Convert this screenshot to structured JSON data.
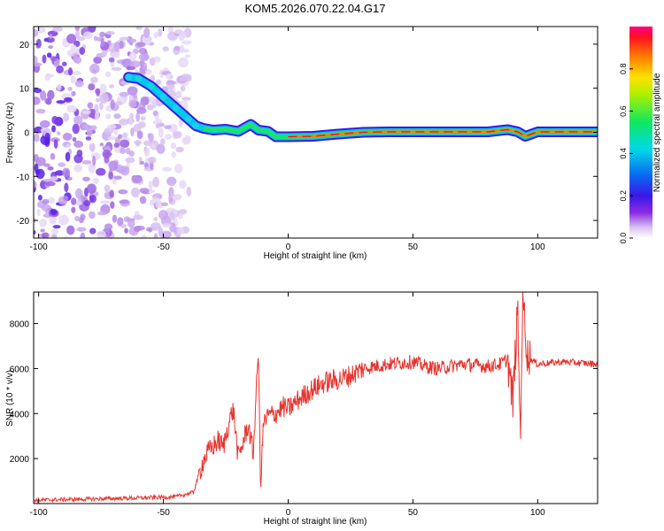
{
  "chart_data": [
    {
      "type": "heatmap",
      "title": "KOM5.2026.070.22.04.G17",
      "xlabel": "Height of straight line (km)",
      "ylabel": "Frequency (Hz)",
      "xlim": [
        -102,
        124
      ],
      "ylim": [
        -24,
        24
      ],
      "x_ticks": [
        -100,
        -50,
        0,
        50,
        100
      ],
      "y_ticks": [
        -20,
        -10,
        0,
        10,
        20
      ],
      "ridge": {
        "x": [
          -64,
          -60,
          -55,
          -50,
          -45,
          -40,
          -37,
          -34,
          -30,
          -25,
          -20,
          -15,
          -12,
          -8,
          -5,
          0,
          10,
          20,
          30,
          40,
          50,
          60,
          70,
          80,
          88,
          92,
          95,
          100,
          110,
          124
        ],
        "y": [
          12.5,
          12.2,
          10.5,
          8,
          5.5,
          3,
          1.5,
          0.9,
          0.5,
          0.7,
          0.2,
          1.8,
          0.5,
          0.2,
          -1,
          -1,
          -0.9,
          -0.4,
          0,
          0.1,
          0.1,
          0.1,
          0.1,
          0.1,
          0.6,
          0.1,
          -0.9,
          0.1,
          0.1,
          0.1
        ]
      },
      "noise_region_km": [
        -102,
        -40
      ]
    },
    {
      "type": "line",
      "xlabel": "Height of straight line (km)",
      "ylabel": "SNR (10 * v/v)",
      "xlim": [
        -102,
        124
      ],
      "ylim": [
        0,
        9400
      ],
      "x_ticks": [
        -100,
        -50,
        0,
        50,
        100
      ],
      "y_ticks": [
        2000,
        4000,
        6000,
        8000
      ],
      "series": [
        {
          "name": "SNR",
          "color": "#e8332e",
          "x": [
            -102,
            -80,
            -60,
            -45,
            -38,
            -36,
            -34,
            -32,
            -28,
            -26,
            -24,
            -22,
            -20,
            -16,
            -14,
            -12,
            -11,
            -10,
            -8,
            -5,
            -2,
            0,
            5,
            10,
            15,
            20,
            25,
            30,
            40,
            50,
            55,
            60,
            70,
            80,
            85,
            88,
            90,
            92,
            93,
            94,
            96,
            100,
            110,
            124
          ],
          "y": [
            150,
            200,
            250,
            300,
            500,
            1200,
            1900,
            2300,
            2800,
            2500,
            3500,
            4200,
            2000,
            3500,
            2200,
            6800,
            700,
            3500,
            3900,
            4000,
            4300,
            4200,
            4700,
            5100,
            5400,
            5500,
            5700,
            6000,
            6200,
            6300,
            6100,
            6000,
            6200,
            6100,
            6200,
            6400,
            4500,
            8600,
            2900,
            9200,
            6500,
            6200,
            6300,
            6200
          ]
        }
      ]
    }
  ],
  "colorbar": {
    "label": "Normalized spectral amplitude",
    "ticks": [
      "0.0",
      "0.2",
      "0.4",
      "0.6",
      "0.8"
    ],
    "ticks_values": [
      0,
      0.2,
      0.4,
      0.6,
      0.8
    ]
  }
}
